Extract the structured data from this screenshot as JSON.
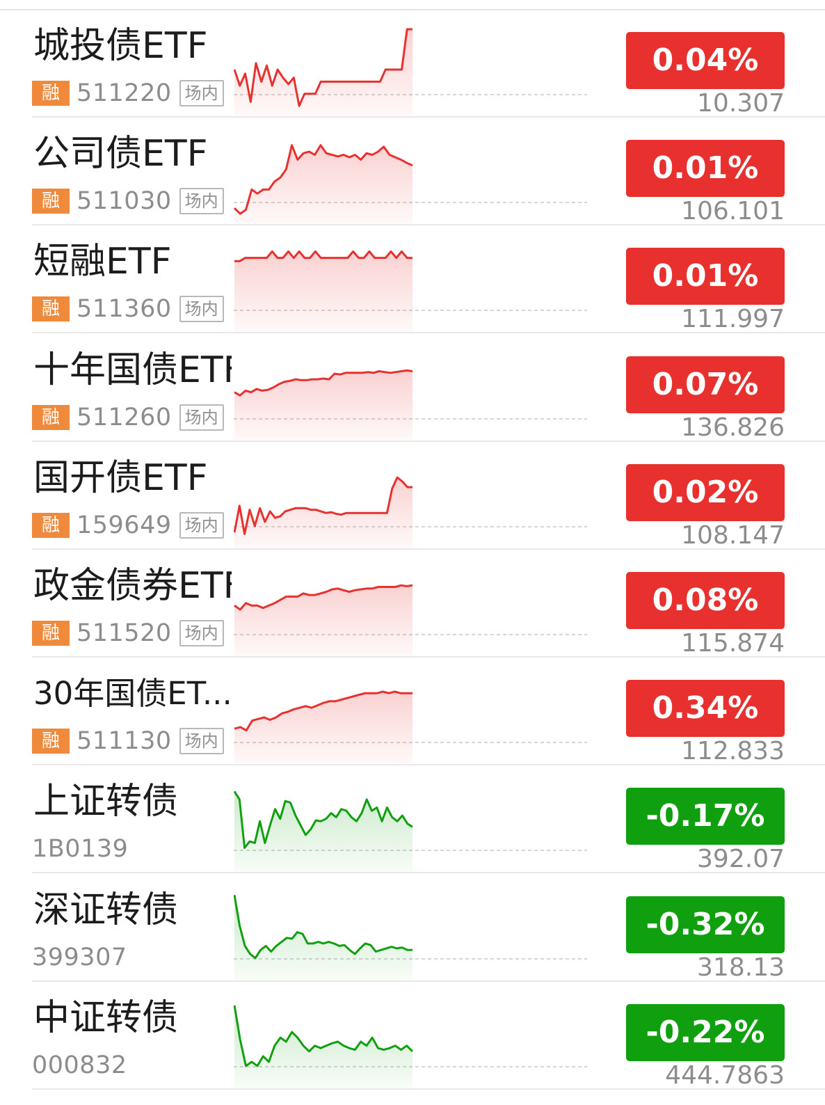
{
  "colors": {
    "up": "#e8302f",
    "down": "#10a00f",
    "rong_badge": "#ef8a3c"
  },
  "rows": [
    {
      "name": "城投债ETF",
      "code": "511220",
      "badge": "融",
      "tag": "场内",
      "pct": "0.04%",
      "price": "10.307",
      "trend": "up",
      "spark": [
        0.5,
        0.3,
        0.45,
        0.1,
        0.58,
        0.35,
        0.55,
        0.3,
        0.5,
        0.4,
        0.32,
        0.4,
        0.05,
        0.2,
        0.2,
        0.2,
        0.35,
        0.35,
        0.35,
        0.35,
        0.35,
        0.35,
        0.35,
        0.35,
        0.35,
        0.35,
        0.35,
        0.35,
        0.5,
        0.5,
        0.5,
        0.5,
        1.0,
        1.0
      ]
    },
    {
      "name": "公司债ETF",
      "code": "511030",
      "badge": "融",
      "tag": "场内",
      "pct": "0.01%",
      "price": "106.101",
      "trend": "up",
      "spark": [
        0.12,
        0.05,
        0.1,
        0.35,
        0.3,
        0.35,
        0.35,
        0.45,
        0.5,
        0.6,
        0.9,
        0.72,
        0.8,
        0.82,
        0.78,
        0.9,
        0.8,
        0.78,
        0.76,
        0.78,
        0.75,
        0.78,
        0.72,
        0.8,
        0.78,
        0.82,
        0.88,
        0.78,
        0.75,
        0.72,
        0.68,
        0.65
      ]
    },
    {
      "name": "短融ETF",
      "code": "511360",
      "badge": "融",
      "tag": "场内",
      "pct": "0.01%",
      "price": "111.997",
      "trend": "up",
      "spark": [
        0.8,
        0.8,
        0.84,
        0.84,
        0.84,
        0.84,
        0.84,
        0.92,
        0.84,
        0.84,
        0.92,
        0.84,
        0.92,
        0.84,
        0.84,
        0.92,
        0.84,
        0.84,
        0.84,
        0.84,
        0.84,
        0.84,
        0.92,
        0.84,
        0.84,
        0.92,
        0.84,
        0.84,
        0.84,
        0.92,
        0.84,
        0.92,
        0.84,
        0.84
      ]
    },
    {
      "name": "十年国债ETF",
      "code": "511260",
      "badge": "融",
      "tag": "场内",
      "pct": "0.07%",
      "price": "136.826",
      "trend": "up",
      "spark": [
        0.52,
        0.48,
        0.54,
        0.52,
        0.56,
        0.54,
        0.55,
        0.58,
        0.62,
        0.65,
        0.66,
        0.68,
        0.67,
        0.67,
        0.68,
        0.68,
        0.69,
        0.68,
        0.75,
        0.74,
        0.76,
        0.76,
        0.76,
        0.76,
        0.77,
        0.76,
        0.78,
        0.77,
        0.76,
        0.77,
        0.78,
        0.79,
        0.78
      ]
    },
    {
      "name": "国开债ETF",
      "code": "159649",
      "badge": "融",
      "tag": "场内",
      "pct": "0.02%",
      "price": "108.147",
      "trend": "up",
      "spark": [
        0.12,
        0.45,
        0.1,
        0.4,
        0.2,
        0.42,
        0.25,
        0.38,
        0.3,
        0.32,
        0.38,
        0.4,
        0.42,
        0.42,
        0.42,
        0.4,
        0.4,
        0.38,
        0.36,
        0.37,
        0.35,
        0.34,
        0.36,
        0.36,
        0.36,
        0.36,
        0.36,
        0.36,
        0.36,
        0.36,
        0.36,
        0.66,
        0.8,
        0.75,
        0.68,
        0.68
      ]
    },
    {
      "name": "政金债券ETF",
      "code": "511520",
      "badge": "融",
      "tag": "场内",
      "pct": "0.08%",
      "price": "115.874",
      "trend": "up",
      "spark": [
        0.55,
        0.5,
        0.58,
        0.55,
        0.55,
        0.52,
        0.55,
        0.58,
        0.62,
        0.66,
        0.66,
        0.66,
        0.7,
        0.68,
        0.68,
        0.7,
        0.72,
        0.75,
        0.76,
        0.74,
        0.72,
        0.74,
        0.75,
        0.76,
        0.76,
        0.78,
        0.78,
        0.78,
        0.78,
        0.8,
        0.79,
        0.8
      ]
    },
    {
      "name": "30年国债ET...",
      "code": "511130",
      "badge": "融",
      "tag": "场内",
      "pct": "0.34%",
      "price": "112.833",
      "trend": "up",
      "small": true,
      "spark": [
        0.36,
        0.38,
        0.34,
        0.46,
        0.48,
        0.5,
        0.47,
        0.5,
        0.55,
        0.57,
        0.6,
        0.62,
        0.64,
        0.62,
        0.65,
        0.68,
        0.7,
        0.7,
        0.72,
        0.74,
        0.76,
        0.78,
        0.8,
        0.8,
        0.8,
        0.82,
        0.8,
        0.82,
        0.8,
        0.8,
        0.8
      ]
    },
    {
      "name": "上证转债",
      "code": "1B0139",
      "badge": "",
      "tag": "",
      "pct": "-0.17%",
      "price": "392.07",
      "trend": "down",
      "spark": [
        0.92,
        0.82,
        0.22,
        0.3,
        0.28,
        0.55,
        0.28,
        0.5,
        0.7,
        0.58,
        0.8,
        0.78,
        0.62,
        0.5,
        0.38,
        0.45,
        0.56,
        0.55,
        0.58,
        0.65,
        0.6,
        0.7,
        0.68,
        0.6,
        0.55,
        0.65,
        0.82,
        0.68,
        0.72,
        0.55,
        0.72,
        0.6,
        0.55,
        0.62,
        0.52,
        0.48
      ]
    },
    {
      "name": "深证转债",
      "code": "399307",
      "badge": "",
      "tag": "",
      "pct": "-0.32%",
      "price": "318.13",
      "trend": "down",
      "spark": [
        0.98,
        0.6,
        0.35,
        0.25,
        0.2,
        0.3,
        0.35,
        0.28,
        0.35,
        0.4,
        0.45,
        0.44,
        0.52,
        0.5,
        0.38,
        0.38,
        0.4,
        0.38,
        0.4,
        0.38,
        0.35,
        0.36,
        0.3,
        0.25,
        0.32,
        0.38,
        0.36,
        0.28,
        0.3,
        0.32,
        0.34,
        0.32,
        0.33,
        0.3,
        0.3
      ]
    },
    {
      "name": "中证转债",
      "code": "000832",
      "badge": "",
      "tag": "",
      "pct": "-0.22%",
      "price": "444.7863",
      "trend": "down",
      "spark": [
        0.95,
        0.52,
        0.2,
        0.25,
        0.2,
        0.32,
        0.25,
        0.45,
        0.55,
        0.5,
        0.62,
        0.55,
        0.45,
        0.38,
        0.45,
        0.42,
        0.45,
        0.48,
        0.5,
        0.45,
        0.42,
        0.4,
        0.5,
        0.45,
        0.55,
        0.42,
        0.4,
        0.42,
        0.45,
        0.4,
        0.45,
        0.38
      ]
    }
  ]
}
